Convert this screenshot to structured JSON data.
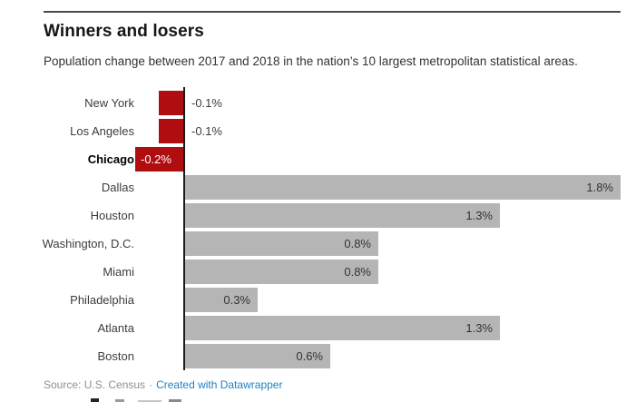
{
  "chart_data": {
    "type": "bar",
    "orientation": "horizontal",
    "title": "Winners and losers",
    "subtitle": "Population change between 2017 and 2018 in the nation’s 10 largest metropolitan statistical areas.",
    "unit": "%",
    "categories": [
      "New York",
      "Los Angeles",
      "Chicago",
      "Dallas",
      "Houston",
      "Washington, D.C.",
      "Miami",
      "Philadelphia",
      "Atlanta",
      "Boston"
    ],
    "values": [
      -0.1,
      -0.1,
      -0.2,
      1.8,
      1.3,
      0.8,
      0.8,
      0.3,
      1.3,
      0.6
    ],
    "value_labels": [
      "-0.1%",
      "-0.1%",
      "-0.2%",
      "1.8%",
      "1.3%",
      "0.8%",
      "0.8%",
      "0.3%",
      "1.3%",
      "0.6%"
    ],
    "highlighted_category": "Chicago",
    "xlim": [
      -0.2,
      1.8
    ],
    "legend": "none",
    "grid": "off"
  },
  "colors": {
    "negative_bar": "#b00d11",
    "positive_bar": "#b5b5b5",
    "axis_line": "#1a1a1a",
    "link_blue": "#1e82c5",
    "source_gray": "#8e8e8e"
  },
  "footer": {
    "source_label": "Source: U.S. Census",
    "separator": "·",
    "attribution_link": "Created with Datawrapper"
  }
}
